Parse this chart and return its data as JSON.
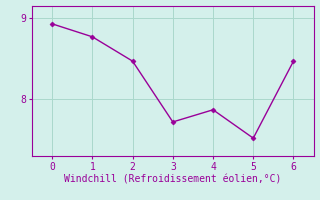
{
  "x": [
    0,
    1,
    2,
    3,
    4,
    5,
    6
  ],
  "y": [
    8.93,
    8.77,
    8.47,
    7.72,
    7.87,
    7.52,
    8.47
  ],
  "line_color": "#990099",
  "marker_color": "#990099",
  "bg_color": "#d4f0eb",
  "grid_color": "#aad8cc",
  "xlabel": "Windchill (Refroidissement éolien,°C)",
  "xlabel_color": "#990099",
  "tick_color": "#990099",
  "spine_color": "#990099",
  "xlim": [
    -0.5,
    6.5
  ],
  "ylim": [
    7.3,
    9.15
  ],
  "yticks": [
    8,
    9
  ],
  "xticks": [
    0,
    1,
    2,
    3,
    4,
    5,
    6
  ]
}
